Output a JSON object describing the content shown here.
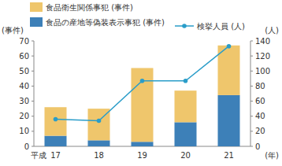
{
  "chart_data": {
    "type": "bar",
    "stacked": true,
    "categories": [
      "17",
      "18",
      "19",
      "20",
      "21"
    ],
    "x_label": "(年)",
    "annotations": [
      "平成"
    ],
    "y_label": "(事件)",
    "y2_label": "(人)",
    "ylim": [
      0,
      70
    ],
    "yticks": [
      0,
      10,
      20,
      30,
      40,
      50,
      60,
      70
    ],
    "y2lim": [
      0,
      140
    ],
    "y2ticks": [
      0,
      20,
      40,
      60,
      80,
      100,
      120,
      140
    ],
    "series": [
      {
        "name": "食品衛生関係事犯 (事件)",
        "type": "bar",
        "color": "#efc66c",
        "values": [
          19,
          21,
          49,
          21,
          33
        ]
      },
      {
        "name": "食品の産地等偽装表示事犯 (事件)",
        "type": "bar",
        "color": "#3d80b8",
        "values": [
          7,
          4,
          3,
          16,
          34
        ]
      },
      {
        "name": "検挙人員 (人)",
        "type": "line",
        "axis": "y2",
        "color": "#2a9dc9",
        "marker": "circle",
        "values": [
          36,
          34,
          87,
          87,
          133
        ]
      }
    ]
  }
}
